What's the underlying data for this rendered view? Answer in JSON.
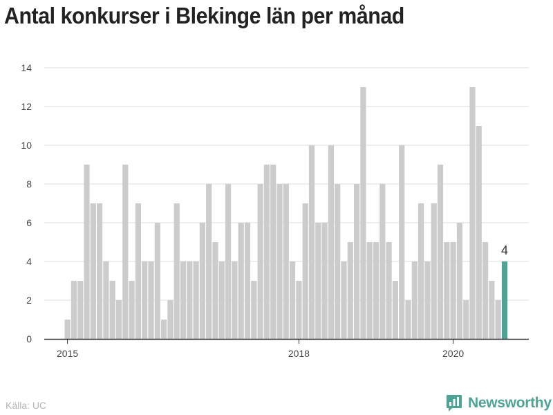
{
  "chart_data": {
    "type": "bar",
    "title": "Antal konkurser i Blekinge län per månad",
    "xlabel": "",
    "ylabel": "",
    "x_start": "2015-01",
    "x_ticks": [
      "2015",
      "2018",
      "2020"
    ],
    "x_tick_months": [
      "2015-01",
      "2018-01",
      "2020-01"
    ],
    "yticks": [
      0,
      2,
      4,
      6,
      8,
      10,
      12,
      14
    ],
    "ylim": [
      0,
      14
    ],
    "grid": true,
    "values": [
      1,
      3,
      3,
      9,
      7,
      7,
      4,
      3,
      2,
      9,
      3,
      7,
      4,
      4,
      6,
      1,
      2,
      7,
      4,
      4,
      4,
      6,
      8,
      5,
      4,
      8,
      4,
      6,
      6,
      3,
      8,
      9,
      9,
      8,
      8,
      4,
      3,
      7,
      10,
      6,
      6,
      10,
      8,
      4,
      5,
      8,
      13,
      5,
      5,
      8,
      5,
      3,
      10,
      2,
      4,
      7,
      4,
      7,
      9,
      5,
      5,
      6,
      2,
      13,
      11,
      5,
      3,
      2,
      4
    ],
    "bar_color": "#cccccc",
    "highlight_color": "#4ea394",
    "highlight_index": 68,
    "highlight_label": "4"
  },
  "source": "Källa: UC",
  "brand": {
    "name": "Newsworthy",
    "color": "#4ea394"
  }
}
